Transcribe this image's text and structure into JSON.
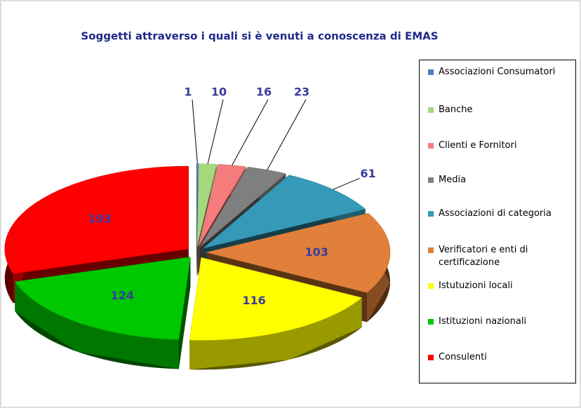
{
  "chart_data": {
    "type": "pie",
    "title": "Soggetti attraverso i quali si è venuti a conoscenza di EMAS",
    "categories": [
      "Associazioni Consumatori",
      "Banche",
      "Clienti e Fornitori",
      "Media",
      "Associazioni di categoria",
      "Verificatori e enti di certificazione",
      "Istutuzioni locali",
      "Istituzioni nazionali",
      "Consulenti"
    ],
    "values": [
      1,
      10,
      16,
      23,
      61,
      103,
      116,
      124,
      193
    ],
    "colors": [
      "#4a7ebb",
      "#a6d87e",
      "#f47c7c",
      "#7f7f7f",
      "#3599b8",
      "#e0803a",
      "#ffff00",
      "#00c800",
      "#ff0000"
    ],
    "legend": "right"
  }
}
